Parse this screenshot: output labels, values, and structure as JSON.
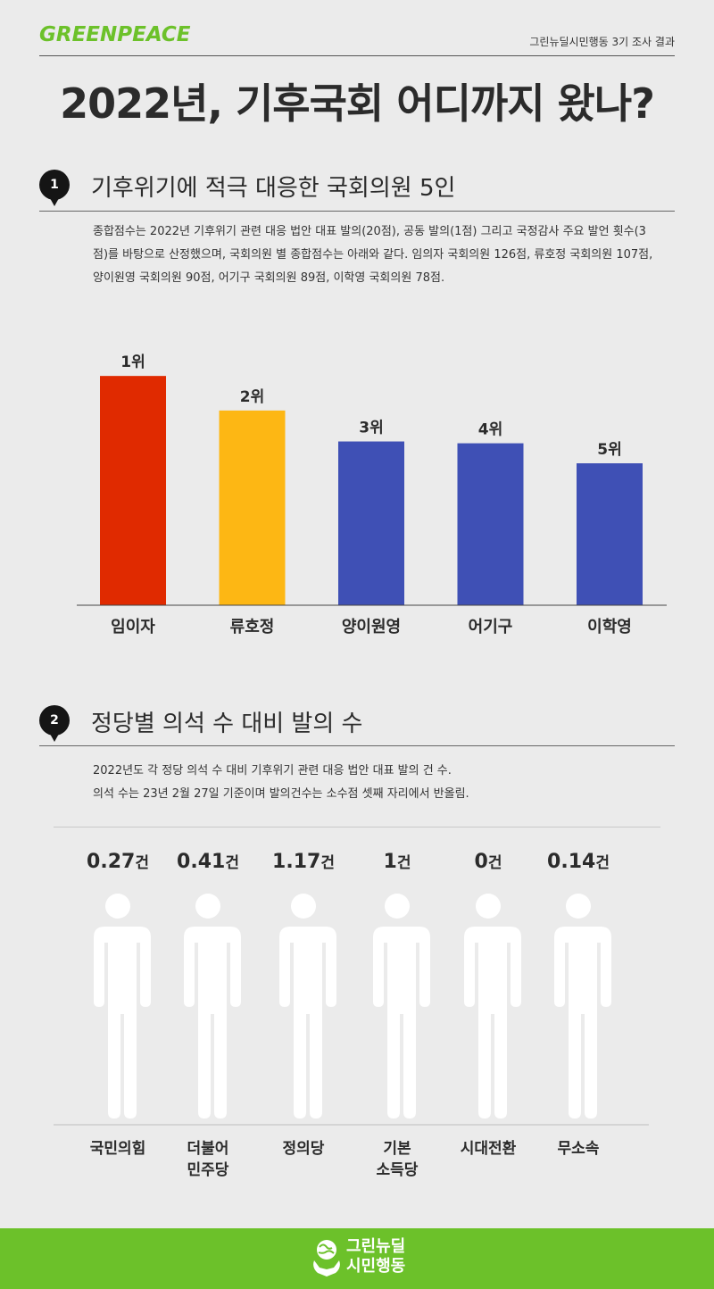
{
  "header": {
    "logo_text": "GREENPEACE",
    "tagline": "그린뉴딜시민행동 3기 조사 결과",
    "title": "2022년, 기후국회 어디까지 왔나?"
  },
  "section1": {
    "number": "1",
    "title": "기후위기에 적극 대응한 국회의원 5인",
    "description": "종합점수는 2022년 기후위기 관련 대응 법안 대표 발의(20점), 공동 발의(1점) 그리고 국정감사 주요 발언 횟수(3점)를 바탕으로 산정했으며, 국회의원 별 종합점수는 아래와 같다. 임의자 국회의원 126점, 류호정 국회의원 107점, 양이원영 국회의원 90점, 어기구 국회의원 89점, 이학영 국회의원 78점."
  },
  "section2": {
    "number": "2",
    "title": "정당별 의석 수 대비 발의 수",
    "description_line1": "2022년도 각 정당 의석 수 대비 기후위기 관련 대응 법안 대표 발의 건 수.",
    "description_line2": "의석 수는 23년 2월 27일 기준이며 발의건수는 소수점 셋째 자리에서 반올림."
  },
  "chart_data": [
    {
      "type": "bar",
      "categories": [
        "임이자",
        "류호정",
        "양이원영",
        "어기구",
        "이학영"
      ],
      "values": [
        126,
        107,
        90,
        89,
        78
      ],
      "data_labels": [
        "1위",
        "2위",
        "3위",
        "4위",
        "5위"
      ],
      "colors": [
        "#e02a00",
        "#fdb714",
        "#3f50b5",
        "#3f50b5",
        "#3f50b5"
      ],
      "ylim": [
        0,
        130
      ],
      "title": "",
      "xlabel": "",
      "ylabel": "",
      "grid": false
    },
    {
      "type": "bar",
      "categories": [
        "국민의힘",
        "더불어 민주당",
        "정의당",
        "기본 소득당",
        "시대전환",
        "무소속"
      ],
      "category_lines": [
        [
          "국민의힘"
        ],
        [
          "더불어",
          "민주당"
        ],
        [
          "정의당"
        ],
        [
          "기본",
          "소득당"
        ],
        [
          "시대전환"
        ],
        [
          "무소속"
        ]
      ],
      "values": [
        0.27,
        0.41,
        1.17,
        1,
        0,
        0.14
      ],
      "value_labels": [
        "0.27",
        "0.41",
        "1.17",
        "1",
        "0",
        "0.14"
      ],
      "unit": "건",
      "colors": [
        "#e02a00",
        "#3f50b5",
        "#fdb714",
        "#8dcfcc",
        "#ffffff",
        "#b4b4b4"
      ],
      "ylim": [
        0,
        1.17
      ],
      "title": "",
      "xlabel": "",
      "ylabel": "",
      "grid": false
    }
  ],
  "footer": {
    "line1": "그린뉴딜",
    "line2": "시민행동"
  }
}
